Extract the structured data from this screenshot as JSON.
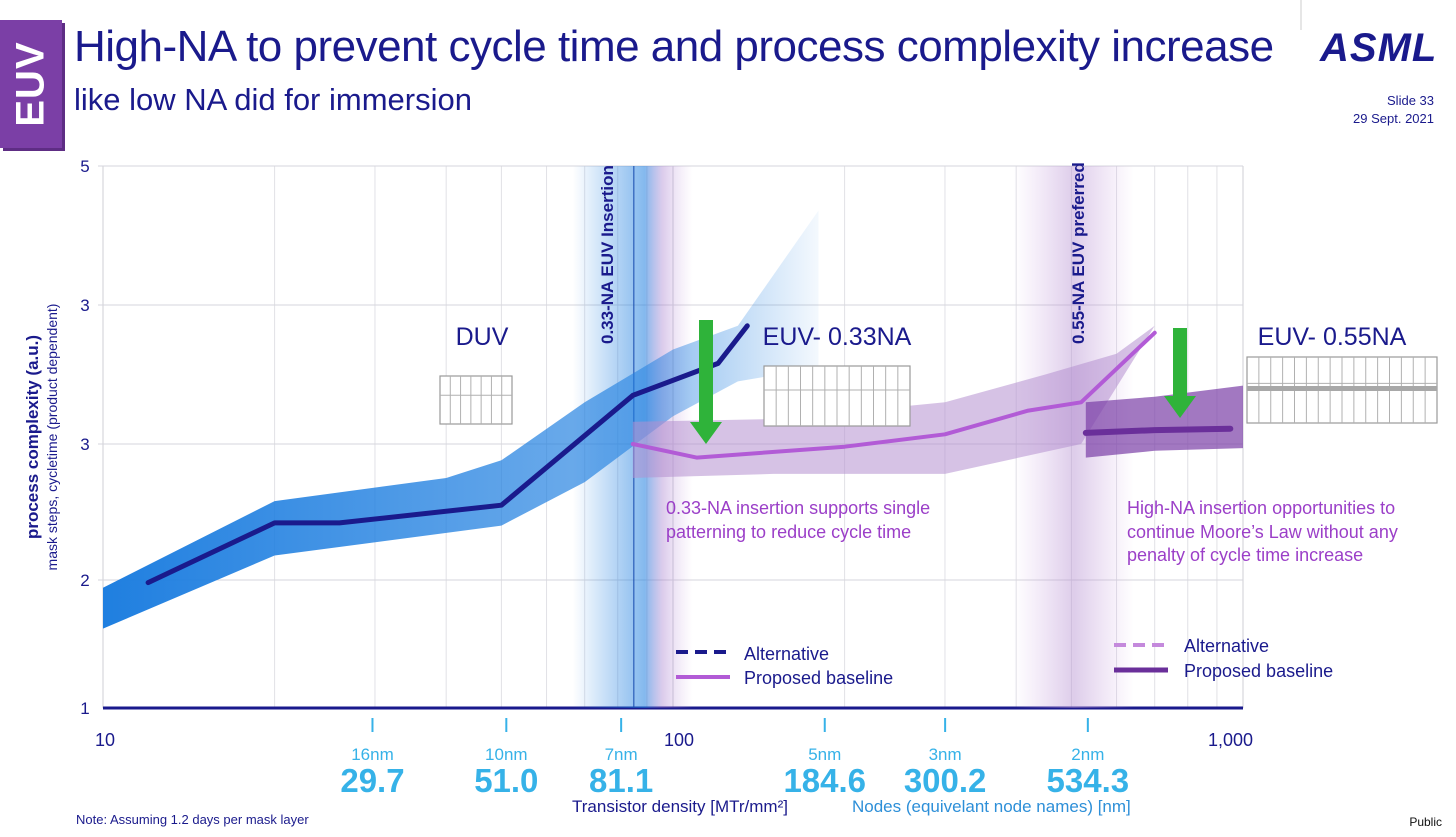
{
  "tag": "EUV",
  "title": "High-NA to prevent cycle time and process complexity increase",
  "subtitle": "like low NA did for immersion",
  "logo": "ASML",
  "slide": "Slide 33",
  "date": "29 Sept. 2021",
  "note": "Note: Assuming 1.2 days per mask layer",
  "classification": "Public",
  "colors": {
    "duv_band": "#1f7fe0",
    "euv_line": "#1a1a8c",
    "euv033_band": "#b48fd0",
    "euv033_line": "#b25bd6",
    "euv055_band": "#7b3fa6",
    "arrow": "#2fb33a",
    "node_value": "#36b2e8"
  },
  "chart_data": {
    "type": "line",
    "ylabel": "process complexity (a.u.)",
    "ylabel_sub": "mask steps, cycletime (product dependent)",
    "y_ticks": [
      "5",
      "3",
      "3",
      "2",
      "1"
    ],
    "x_ticks": [
      "10",
      "100",
      "1,000"
    ],
    "x_scale": "log",
    "xlim": [
      10,
      1000
    ],
    "xlabel": "Transistor density [MTr/mm²]",
    "xlabel2": "Nodes (equivelant node names) [nm]",
    "nodes": [
      {
        "name": "16nm",
        "density": "29.7",
        "x": 29.7
      },
      {
        "name": "10nm",
        "density": "51.0",
        "x": 51.0
      },
      {
        "name": "7nm",
        "density": "81.1",
        "x": 81.1
      },
      {
        "name": "5nm",
        "density": "184.6",
        "x": 184.6
      },
      {
        "name": "3nm",
        "density": "300.2",
        "x": 300.2
      },
      {
        "name": "2nm",
        "density": "534.3",
        "x": 534.3
      }
    ],
    "insertions": [
      {
        "label": "0.33-NA EUV Insertion",
        "x": 85
      },
      {
        "label": "0.55-NA EUV preferred",
        "x": 530
      }
    ],
    "regions": [
      {
        "label": "DUV",
        "x": 50
      },
      {
        "label": "EUV- 0.33NA",
        "x": 250
      },
      {
        "label": "EUV- 0.55NA",
        "x": 1000
      }
    ],
    "series": [
      {
        "name": "DUV",
        "line": [
          [
            12,
            1.98
          ],
          [
            20,
            2.42
          ],
          [
            26,
            2.42
          ],
          [
            50,
            2.55
          ],
          [
            85,
            3.35
          ],
          [
            120,
            3.58
          ],
          [
            135,
            3.85
          ]
        ],
        "band_upper": [
          [
            10,
            1.94
          ],
          [
            20,
            2.58
          ],
          [
            40,
            2.75
          ],
          [
            50,
            2.88
          ],
          [
            70,
            3.3
          ],
          [
            100,
            3.68
          ],
          [
            130,
            3.85
          ],
          [
            180,
            4.68
          ]
        ],
        "band_lower": [
          [
            10,
            1.62
          ],
          [
            20,
            2.18
          ],
          [
            50,
            2.4
          ],
          [
            70,
            2.72
          ],
          [
            100,
            3.2
          ],
          [
            130,
            3.45
          ],
          [
            180,
            3.55
          ]
        ]
      },
      {
        "name": "EUV 0.33NA",
        "line": [
          [
            85,
            3.0
          ],
          [
            110,
            2.9
          ],
          [
            200,
            2.98
          ],
          [
            300,
            3.07
          ],
          [
            420,
            3.24
          ],
          [
            520,
            3.3
          ],
          [
            700,
            3.8
          ]
        ],
        "band_upper": [
          [
            85,
            3.16
          ],
          [
            150,
            3.18
          ],
          [
            300,
            3.3
          ],
          [
            450,
            3.5
          ],
          [
            600,
            3.65
          ],
          [
            700,
            3.85
          ]
        ],
        "band_lower": [
          [
            85,
            2.75
          ],
          [
            150,
            2.78
          ],
          [
            300,
            2.78
          ],
          [
            520,
            3.0
          ]
        ]
      },
      {
        "name": "EUV 0.55NA",
        "line": [
          [
            530,
            3.08
          ],
          [
            700,
            3.1
          ],
          [
            950,
            3.11
          ]
        ],
        "band_upper": [
          [
            530,
            3.3
          ],
          [
            700,
            3.34
          ],
          [
            1000,
            3.42
          ]
        ],
        "band_lower": [
          [
            530,
            2.9
          ],
          [
            700,
            2.95
          ],
          [
            1000,
            2.97
          ]
        ]
      }
    ],
    "legends": [
      {
        "alternative": "Alternative",
        "baseline": "Proposed baseline"
      },
      {
        "alternative": "Alternative",
        "baseline": "Proposed baseline"
      }
    ],
    "annotations": [
      "0.33-NA insertion supports single",
      "patterning to reduce cycle time",
      "High-NA insertion opportunities to",
      "continue Moore’s Law without any",
      "penalty of cycle time increase"
    ],
    "grid": true
  }
}
